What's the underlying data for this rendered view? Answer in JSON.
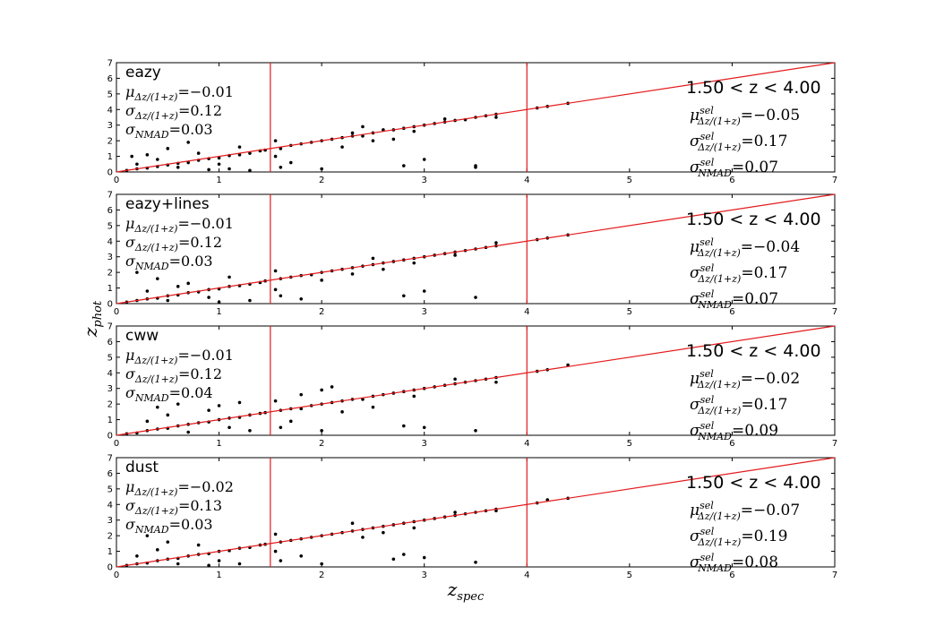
{
  "figure": {
    "xlabel": "z",
    "xlabel_sub": "spec",
    "ylabel": "z",
    "ylabel_sub": "phot"
  },
  "chart_data": [
    {
      "type": "scatter",
      "title": "eazy",
      "xlim": [
        0,
        7
      ],
      "ylim": [
        0,
        7
      ],
      "x_ticks": [
        0,
        1,
        2,
        3,
        4,
        5,
        6,
        7
      ],
      "y_ticks": [
        0,
        1,
        2,
        3,
        4,
        5,
        6,
        7
      ],
      "vlines": [
        1.5,
        4.0
      ],
      "one_to_one": [
        [
          0,
          0
        ],
        [
          7,
          7
        ]
      ],
      "line_color": "#e31a1c",
      "point_color": "#000000",
      "stats": [
        {
          "sym": "μ",
          "sub": "Δz/(1+z)",
          "sup": "",
          "val": "=−0.01"
        },
        {
          "sym": "σ",
          "sub": "Δz/(1+z)",
          "sup": "",
          "val": "=0.12"
        },
        {
          "sym": "σ",
          "sub": "NMAD",
          "sup": "",
          "val": "=0.03"
        }
      ],
      "range_label": "1.50 < z < 4.00",
      "sel_stats": [
        {
          "sym": "μ",
          "sub": "Δz/(1+z)",
          "sup": "sel",
          "val": "=−0.05"
        },
        {
          "sym": "σ",
          "sub": "Δz/(1+z)",
          "sup": "sel",
          "val": "=0.17"
        },
        {
          "sym": "σ",
          "sub": "NMAD",
          "sup": "sel",
          "val": "=0.07"
        }
      ],
      "points": [
        [
          0.1,
          0.1
        ],
        [
          0.2,
          0.2
        ],
        [
          0.3,
          0.25
        ],
        [
          0.4,
          0.35
        ],
        [
          0.5,
          0.45
        ],
        [
          0.6,
          0.55
        ],
        [
          0.7,
          0.6
        ],
        [
          0.8,
          0.75
        ],
        [
          0.9,
          0.85
        ],
        [
          1.0,
          0.9
        ],
        [
          1.1,
          1.05
        ],
        [
          1.2,
          1.1
        ],
        [
          1.3,
          1.2
        ],
        [
          1.4,
          1.35
        ],
        [
          1.45,
          1.4
        ],
        [
          0.2,
          0.5
        ],
        [
          0.4,
          0.8
        ],
        [
          0.6,
          0.3
        ],
        [
          0.8,
          1.2
        ],
        [
          1.0,
          0.5
        ],
        [
          1.2,
          1.6
        ],
        [
          0.3,
          1.1
        ],
        [
          0.5,
          1.5
        ],
        [
          0.15,
          1.0
        ],
        [
          1.1,
          0.2
        ],
        [
          1.3,
          0.1
        ],
        [
          0.7,
          1.9
        ],
        [
          0.9,
          0.15
        ],
        [
          1.6,
          1.5
        ],
        [
          1.7,
          1.7
        ],
        [
          1.8,
          1.8
        ],
        [
          1.9,
          1.9
        ],
        [
          2.0,
          2.0
        ],
        [
          2.1,
          2.1
        ],
        [
          2.2,
          2.2
        ],
        [
          2.3,
          2.3
        ],
        [
          2.4,
          2.3
        ],
        [
          2.5,
          2.5
        ],
        [
          2.6,
          2.7
        ],
        [
          2.7,
          2.7
        ],
        [
          2.8,
          2.8
        ],
        [
          2.9,
          2.9
        ],
        [
          3.0,
          3.0
        ],
        [
          3.1,
          3.1
        ],
        [
          3.2,
          3.2
        ],
        [
          3.3,
          3.3
        ],
        [
          3.4,
          3.35
        ],
        [
          3.5,
          3.5
        ],
        [
          3.6,
          3.6
        ],
        [
          3.7,
          3.7
        ],
        [
          2.2,
          1.6
        ],
        [
          2.5,
          2.0
        ],
        [
          2.4,
          2.9
        ],
        [
          2.7,
          2.1
        ],
        [
          1.6,
          0.3
        ],
        [
          1.7,
          0.6
        ],
        [
          2.0,
          0.2
        ],
        [
          2.8,
          0.4
        ],
        [
          3.0,
          0.8
        ],
        [
          3.5,
          0.4
        ],
        [
          3.5,
          0.3
        ],
        [
          4.1,
          4.1
        ],
        [
          4.2,
          4.2
        ],
        [
          4.4,
          4.4
        ],
        [
          1.55,
          1.0
        ],
        [
          1.55,
          2.0
        ],
        [
          2.3,
          2.5
        ],
        [
          2.9,
          2.6
        ],
        [
          3.2,
          3.4
        ],
        [
          3.7,
          3.5
        ]
      ]
    },
    {
      "type": "scatter",
      "title": "eazy+lines",
      "xlim": [
        0,
        7
      ],
      "ylim": [
        0,
        7
      ],
      "x_ticks": [
        0,
        1,
        2,
        3,
        4,
        5,
        6,
        7
      ],
      "y_ticks": [
        0,
        1,
        2,
        3,
        4,
        5,
        6,
        7
      ],
      "vlines": [
        1.5,
        4.0
      ],
      "one_to_one": [
        [
          0,
          0
        ],
        [
          7,
          7
        ]
      ],
      "line_color": "#e31a1c",
      "point_color": "#000000",
      "stats": [
        {
          "sym": "μ",
          "sub": "Δz/(1+z)",
          "sup": "",
          "val": "=−0.01"
        },
        {
          "sym": "σ",
          "sub": "Δz/(1+z)",
          "sup": "",
          "val": "=0.12"
        },
        {
          "sym": "σ",
          "sub": "NMAD",
          "sup": "",
          "val": "=0.03"
        }
      ],
      "range_label": "1.50 < z < 4.00",
      "sel_stats": [
        {
          "sym": "μ",
          "sub": "Δz/(1+z)",
          "sup": "sel",
          "val": "=−0.04"
        },
        {
          "sym": "σ",
          "sub": "Δz/(1+z)",
          "sup": "sel",
          "val": "=0.17"
        },
        {
          "sym": "σ",
          "sub": "NMAD",
          "sup": "sel",
          "val": "=0.07"
        }
      ],
      "points": [
        [
          0.1,
          0.1
        ],
        [
          0.2,
          0.2
        ],
        [
          0.3,
          0.3
        ],
        [
          0.4,
          0.35
        ],
        [
          0.5,
          0.5
        ],
        [
          0.6,
          0.55
        ],
        [
          0.7,
          0.7
        ],
        [
          0.8,
          0.75
        ],
        [
          0.9,
          0.9
        ],
        [
          1.0,
          0.95
        ],
        [
          1.1,
          1.1
        ],
        [
          1.2,
          1.15
        ],
        [
          1.3,
          1.25
        ],
        [
          1.4,
          1.35
        ],
        [
          1.45,
          1.45
        ],
        [
          0.3,
          0.8
        ],
        [
          0.5,
          0.2
        ],
        [
          0.7,
          1.3
        ],
        [
          0.9,
          0.4
        ],
        [
          1.1,
          1.7
        ],
        [
          0.4,
          1.6
        ],
        [
          0.6,
          1.1
        ],
        [
          0.2,
          2.0
        ],
        [
          1.0,
          0.1
        ],
        [
          1.3,
          0.2
        ],
        [
          1.6,
          1.6
        ],
        [
          1.7,
          1.7
        ],
        [
          1.8,
          1.8
        ],
        [
          1.9,
          1.85
        ],
        [
          2.0,
          2.0
        ],
        [
          2.1,
          2.1
        ],
        [
          2.2,
          2.2
        ],
        [
          2.3,
          2.3
        ],
        [
          2.4,
          2.4
        ],
        [
          2.5,
          2.5
        ],
        [
          2.6,
          2.6
        ],
        [
          2.7,
          2.7
        ],
        [
          2.8,
          2.8
        ],
        [
          2.9,
          2.9
        ],
        [
          3.0,
          3.0
        ],
        [
          3.1,
          3.1
        ],
        [
          3.2,
          3.2
        ],
        [
          3.3,
          3.3
        ],
        [
          3.4,
          3.4
        ],
        [
          3.5,
          3.5
        ],
        [
          3.6,
          3.6
        ],
        [
          3.7,
          3.7
        ],
        [
          2.3,
          1.9
        ],
        [
          2.6,
          2.2
        ],
        [
          2.5,
          2.9
        ],
        [
          2.0,
          1.5
        ],
        [
          1.6,
          0.5
        ],
        [
          1.8,
          0.3
        ],
        [
          2.8,
          0.5
        ],
        [
          3.0,
          0.8
        ],
        [
          3.5,
          0.4
        ],
        [
          4.1,
          4.1
        ],
        [
          4.2,
          4.2
        ],
        [
          4.4,
          4.4
        ],
        [
          1.55,
          0.9
        ],
        [
          1.55,
          2.1
        ],
        [
          2.9,
          2.6
        ],
        [
          3.3,
          3.1
        ],
        [
          3.7,
          3.9
        ]
      ]
    },
    {
      "type": "scatter",
      "title": "cww",
      "xlim": [
        0,
        7
      ],
      "ylim": [
        0,
        7
      ],
      "x_ticks": [
        0,
        1,
        2,
        3,
        4,
        5,
        6,
        7
      ],
      "y_ticks": [
        0,
        1,
        2,
        3,
        4,
        5,
        6,
        7
      ],
      "vlines": [
        1.5,
        4.0
      ],
      "one_to_one": [
        [
          0,
          0
        ],
        [
          7,
          7
        ]
      ],
      "line_color": "#e31a1c",
      "point_color": "#000000",
      "stats": [
        {
          "sym": "μ",
          "sub": "Δz/(1+z)",
          "sup": "",
          "val": "=−0.01"
        },
        {
          "sym": "σ",
          "sub": "Δz/(1+z)",
          "sup": "",
          "val": "=0.12"
        },
        {
          "sym": "σ",
          "sub": "NMAD",
          "sup": "",
          "val": "=0.04"
        }
      ],
      "range_label": "1.50 < z < 4.00",
      "sel_stats": [
        {
          "sym": "μ",
          "sub": "Δz/(1+z)",
          "sup": "sel",
          "val": "=−0.02"
        },
        {
          "sym": "σ",
          "sub": "Δz/(1+z)",
          "sup": "sel",
          "val": "=0.17"
        },
        {
          "sym": "σ",
          "sub": "NMAD",
          "sup": "sel",
          "val": "=0.09"
        }
      ],
      "points": [
        [
          0.1,
          0.1
        ],
        [
          0.2,
          0.15
        ],
        [
          0.3,
          0.3
        ],
        [
          0.4,
          0.4
        ],
        [
          0.5,
          0.45
        ],
        [
          0.6,
          0.6
        ],
        [
          0.7,
          0.7
        ],
        [
          0.8,
          0.8
        ],
        [
          0.9,
          0.85
        ],
        [
          1.0,
          1.0
        ],
        [
          1.1,
          1.1
        ],
        [
          1.2,
          1.15
        ],
        [
          1.3,
          1.3
        ],
        [
          1.4,
          1.4
        ],
        [
          1.45,
          1.45
        ],
        [
          0.3,
          0.9
        ],
        [
          0.5,
          1.3
        ],
        [
          0.7,
          0.2
        ],
        [
          0.9,
          1.6
        ],
        [
          1.1,
          0.5
        ],
        [
          1.2,
          2.1
        ],
        [
          0.4,
          1.8
        ],
        [
          0.6,
          2.0
        ],
        [
          1.0,
          1.9
        ],
        [
          1.3,
          0.3
        ],
        [
          1.6,
          1.6
        ],
        [
          1.7,
          1.7
        ],
        [
          1.8,
          1.7
        ],
        [
          1.9,
          1.9
        ],
        [
          2.0,
          2.0
        ],
        [
          2.1,
          2.1
        ],
        [
          2.2,
          2.2
        ],
        [
          2.3,
          2.3
        ],
        [
          2.4,
          2.3
        ],
        [
          2.5,
          2.5
        ],
        [
          2.6,
          2.6
        ],
        [
          2.7,
          2.7
        ],
        [
          2.8,
          2.8
        ],
        [
          2.9,
          2.9
        ],
        [
          3.0,
          3.0
        ],
        [
          3.1,
          3.1
        ],
        [
          3.2,
          3.2
        ],
        [
          3.3,
          3.3
        ],
        [
          3.4,
          3.4
        ],
        [
          3.5,
          3.5
        ],
        [
          3.6,
          3.6
        ],
        [
          3.7,
          3.7
        ],
        [
          1.8,
          2.6
        ],
        [
          2.0,
          2.9
        ],
        [
          2.2,
          1.5
        ],
        [
          2.5,
          1.8
        ],
        [
          2.1,
          3.1
        ],
        [
          1.6,
          0.5
        ],
        [
          1.7,
          0.9
        ],
        [
          2.0,
          0.3
        ],
        [
          2.8,
          0.6
        ],
        [
          3.0,
          0.5
        ],
        [
          3.5,
          0.3
        ],
        [
          4.1,
          4.1
        ],
        [
          4.2,
          4.2
        ],
        [
          4.4,
          4.5
        ],
        [
          1.55,
          2.2
        ],
        [
          2.9,
          2.5
        ],
        [
          3.3,
          3.6
        ],
        [
          3.7,
          3.4
        ]
      ]
    },
    {
      "type": "scatter",
      "title": "dust",
      "xlim": [
        0,
        7
      ],
      "ylim": [
        0,
        7
      ],
      "x_ticks": [
        0,
        1,
        2,
        3,
        4,
        5,
        6,
        7
      ],
      "y_ticks": [
        0,
        1,
        2,
        3,
        4,
        5,
        6,
        7
      ],
      "vlines": [
        1.5,
        4.0
      ],
      "one_to_one": [
        [
          0,
          0
        ],
        [
          7,
          7
        ]
      ],
      "line_color": "#e31a1c",
      "point_color": "#000000",
      "stats": [
        {
          "sym": "μ",
          "sub": "Δz/(1+z)",
          "sup": "",
          "val": "=−0.02"
        },
        {
          "sym": "σ",
          "sub": "Δz/(1+z)",
          "sup": "",
          "val": "=0.13"
        },
        {
          "sym": "σ",
          "sub": "NMAD",
          "sup": "",
          "val": "=0.03"
        }
      ],
      "range_label": "1.50 < z < 4.00",
      "sel_stats": [
        {
          "sym": "μ",
          "sub": "Δz/(1+z)",
          "sup": "sel",
          "val": "=−0.07"
        },
        {
          "sym": "σ",
          "sub": "Δz/(1+z)",
          "sup": "sel",
          "val": "=0.19"
        },
        {
          "sym": "σ",
          "sub": "NMAD",
          "sup": "sel",
          "val": "=0.08"
        }
      ],
      "points": [
        [
          0.1,
          0.1
        ],
        [
          0.2,
          0.2
        ],
        [
          0.3,
          0.25
        ],
        [
          0.4,
          0.4
        ],
        [
          0.5,
          0.5
        ],
        [
          0.6,
          0.55
        ],
        [
          0.7,
          0.7
        ],
        [
          0.8,
          0.8
        ],
        [
          0.9,
          0.85
        ],
        [
          1.0,
          1.0
        ],
        [
          1.1,
          1.05
        ],
        [
          1.2,
          1.2
        ],
        [
          1.3,
          1.25
        ],
        [
          1.4,
          1.4
        ],
        [
          1.45,
          1.45
        ],
        [
          0.2,
          0.7
        ],
        [
          0.4,
          1.1
        ],
        [
          0.6,
          0.2
        ],
        [
          0.8,
          1.4
        ],
        [
          1.0,
          0.4
        ],
        [
          0.3,
          2.0
        ],
        [
          0.5,
          1.6
        ],
        [
          1.2,
          0.2
        ],
        [
          0.9,
          0.1
        ],
        [
          1.6,
          1.6
        ],
        [
          1.7,
          1.7
        ],
        [
          1.8,
          1.8
        ],
        [
          1.9,
          1.9
        ],
        [
          2.0,
          2.0
        ],
        [
          2.1,
          2.1
        ],
        [
          2.2,
          2.2
        ],
        [
          2.3,
          2.3
        ],
        [
          2.4,
          2.4
        ],
        [
          2.5,
          2.5
        ],
        [
          2.6,
          2.6
        ],
        [
          2.7,
          2.7
        ],
        [
          2.8,
          2.8
        ],
        [
          2.9,
          2.9
        ],
        [
          3.0,
          3.0
        ],
        [
          3.1,
          3.1
        ],
        [
          3.2,
          3.2
        ],
        [
          3.3,
          3.3
        ],
        [
          3.4,
          3.4
        ],
        [
          3.5,
          3.5
        ],
        [
          3.6,
          3.6
        ],
        [
          3.7,
          3.7
        ],
        [
          2.4,
          1.9
        ],
        [
          2.6,
          2.2
        ],
        [
          2.3,
          2.8
        ],
        [
          2.9,
          2.5
        ],
        [
          1.6,
          0.4
        ],
        [
          1.8,
          0.7
        ],
        [
          2.0,
          0.2
        ],
        [
          2.7,
          0.5
        ],
        [
          2.8,
          0.8
        ],
        [
          3.0,
          0.6
        ],
        [
          3.5,
          0.3
        ],
        [
          4.1,
          4.1
        ],
        [
          4.2,
          4.3
        ],
        [
          4.4,
          4.4
        ],
        [
          1.55,
          1.0
        ],
        [
          1.55,
          2.1
        ],
        [
          3.3,
          3.5
        ],
        [
          3.7,
          3.6
        ]
      ]
    }
  ]
}
